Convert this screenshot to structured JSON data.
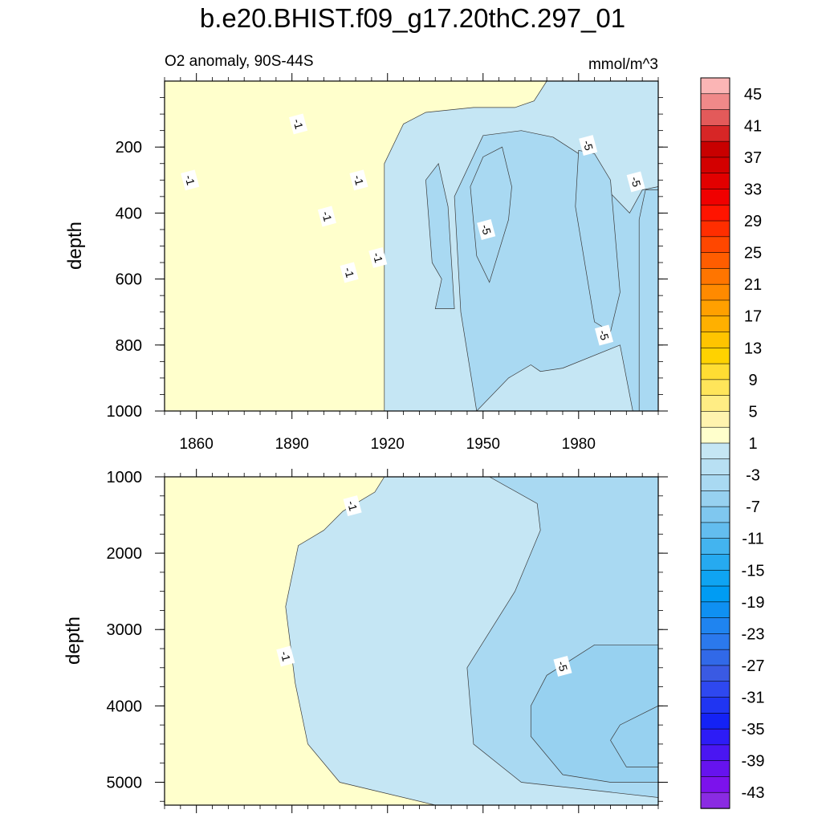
{
  "chart_data": [
    {
      "type": "contour",
      "panel": "upper",
      "title": "b.e20.BHIST.f09_g17.20thC.297_01",
      "left_subtitle": "O2 anomaly, 90S-44S",
      "right_subtitle": "mmol/m^3",
      "xlabel": "",
      "ylabel": "depth",
      "xlim": [
        1850,
        2005
      ],
      "ylim": [
        1000,
        0
      ],
      "xticks": [
        1860,
        1890,
        1920,
        1950,
        1980
      ],
      "xtick_labels": [
        "1860",
        "1890",
        "1920",
        "1950",
        "1980"
      ],
      "yticks": [
        200,
        400,
        600,
        800,
        1000
      ],
      "ytick_labels": [
        "200",
        "400",
        "600",
        "800",
        "1000"
      ],
      "contour_labels": [
        {
          "text": "-1",
          "x": 1858,
          "y": 300
        },
        {
          "text": "-1",
          "x": 1892,
          "y": 130
        },
        {
          "text": "-1",
          "x": 1901,
          "y": 410
        },
        {
          "text": "-1",
          "x": 1911,
          "y": 300
        },
        {
          "text": "-1",
          "x": 1908,
          "y": 580
        },
        {
          "text": "-1",
          "x": 1917,
          "y": 535
        },
        {
          "text": "-5",
          "x": 1951,
          "y": 450
        },
        {
          "text": "-5",
          "x": 1983,
          "y": 195
        },
        {
          "text": "-5",
          "x": 1998,
          "y": 305
        },
        {
          "text": "-5",
          "x": 1988,
          "y": 770
        }
      ],
      "regions": [
        {
          "level": "-3 to 1",
          "shape": [
            [
              1919,
              1000
            ],
            [
              1919,
              720
            ],
            [
              1919,
              250
            ],
            [
              1925,
              130
            ],
            [
              1932,
              95
            ],
            [
              1947,
              80
            ],
            [
              1960,
              80
            ],
            [
              1966,
              60
            ],
            [
              1970,
              0
            ],
            [
              2005,
              0
            ],
            [
              2005,
              1000
            ]
          ]
        },
        {
          "level": "-7 to -3",
          "shape": [
            [
              1972,
              170
            ],
            [
              1980,
              220
            ],
            [
              1985,
              260
            ],
            [
              1990,
              340
            ],
            [
              1996,
              400
            ],
            [
              2000,
              330
            ],
            [
              2005,
              320
            ],
            [
              2005,
              1000
            ],
            [
              1997,
              1000
            ],
            [
              1993,
              800
            ],
            [
              1975,
              870
            ],
            [
              1968,
              880
            ],
            [
              1965,
              860
            ],
            [
              1958,
              900
            ],
            [
              1948,
              1000
            ],
            [
              1943,
              700
            ],
            [
              1941,
              350
            ],
            [
              1950,
              165
            ],
            [
              1962,
              150
            ]
          ]
        },
        {
          "level": "-7 to -3",
          "shape": [
            [
              1935,
              690
            ],
            [
              1937,
              600
            ],
            [
              1934,
              550
            ],
            [
              1932,
              300
            ],
            [
              1936,
              250
            ],
            [
              1939,
              380
            ],
            [
              1941,
              690
            ]
          ]
        },
        {
          "level": "-7 to -3",
          "shape": [
            [
              1958,
              420
            ],
            [
              1952,
              610
            ],
            [
              1948,
              530
            ],
            [
              1946,
              320
            ],
            [
              1950,
              230
            ],
            [
              1956,
              200
            ],
            [
              1959,
              320
            ]
          ]
        },
        {
          "level": "-7 to -3",
          "shape": [
            [
              1985,
              730
            ],
            [
              1990,
              760
            ],
            [
              1993,
              640
            ],
            [
              1990,
              300
            ],
            [
              1985,
              220
            ],
            [
              1980,
              210
            ],
            [
              1979,
              380
            ]
          ]
        },
        {
          "level": "-7 to -3",
          "shape": [
            [
              1999,
              1000
            ],
            [
              1999,
              420
            ],
            [
              2001,
              330
            ],
            [
              2005,
              330
            ],
            [
              2005,
              1000
            ]
          ]
        }
      ]
    },
    {
      "type": "contour",
      "panel": "lower",
      "xlabel": "",
      "ylabel": "depth",
      "xlim": [
        1850,
        2005
      ],
      "ylim": [
        5300,
        1000
      ],
      "xticks": [
        1860,
        1890,
        1920,
        1950,
        1980
      ],
      "yticks": [
        1000,
        2000,
        3000,
        4000,
        5000
      ],
      "ytick_labels": [
        "1000",
        "2000",
        "3000",
        "4000",
        "5000"
      ],
      "contour_labels": [
        {
          "text": "-1",
          "x": 1909,
          "y": 1380
        },
        {
          "text": "-1",
          "x": 1888,
          "y": 3350
        },
        {
          "text": "-5",
          "x": 1975,
          "y": 3480
        }
      ],
      "regions": [
        {
          "level": "-3 to 1",
          "shape": [
            [
              1919,
              1000
            ],
            [
              1916,
              1200
            ],
            [
              1906,
              1450
            ],
            [
              1900,
              1700
            ],
            [
              1892,
              1900
            ],
            [
              1888,
              2700
            ],
            [
              1891,
              3700
            ],
            [
              1895,
              4500
            ],
            [
              1905,
              5000
            ],
            [
              1935,
              5300
            ],
            [
              2005,
              5300
            ],
            [
              2005,
              1000
            ]
          ]
        },
        {
          "level": "-7 to -3",
          "shape": [
            [
              1952,
              1000
            ],
            [
              1967,
              1350
            ],
            [
              1968,
              1700
            ],
            [
              1960,
              2500
            ],
            [
              1945,
              3500
            ],
            [
              1947,
              4500
            ],
            [
              1962,
              5000
            ],
            [
              2005,
              5200
            ],
            [
              2005,
              1000
            ]
          ]
        },
        {
          "level": "-11 to -7",
          "shape": [
            [
              1965,
              4000
            ],
            [
              1965,
              4400
            ],
            [
              1975,
              4900
            ],
            [
              1990,
              5000
            ],
            [
              2005,
              5000
            ],
            [
              2005,
              3200
            ],
            [
              1985,
              3200
            ],
            [
              1970,
              3600
            ]
          ]
        },
        {
          "level": "-11 to -7",
          "shape": [
            [
              1990,
              4450
            ],
            [
              1995,
              4800
            ],
            [
              2005,
              4800
            ],
            [
              2005,
              4000
            ],
            [
              1993,
              4250
            ]
          ]
        }
      ]
    },
    {
      "type": "colorbar",
      "levels": [
        45,
        43,
        41,
        39,
        37,
        35,
        33,
        31,
        29,
        27,
        25,
        23,
        21,
        19,
        17,
        15,
        13,
        11,
        9,
        7,
        5,
        3,
        1,
        -1,
        -3,
        -5,
        -7,
        -9,
        -11,
        -13,
        -15,
        -17,
        -19,
        -21,
        -23,
        -25,
        -27,
        -29,
        -31,
        -33,
        -35,
        -37,
        -39,
        -41,
        -43,
        -45
      ],
      "tick_labels": [
        "45",
        "41",
        "37",
        "33",
        "29",
        "25",
        "21",
        "17",
        "13",
        "9",
        "5",
        "1",
        "-3",
        "-7",
        "-11",
        "-15",
        "-19",
        "-23",
        "-27",
        "-31",
        "-35",
        "-39",
        "-43"
      ],
      "colors": [
        "#fbb5b5",
        "#f08989",
        "#e35a5a",
        "#d72626",
        "#c80000",
        "#d30000",
        "#e20000",
        "#f00000",
        "#ff1400",
        "#ff2e00",
        "#ff4700",
        "#ff5d00",
        "#ff7500",
        "#ff8a00",
        "#ffa000",
        "#ffb000",
        "#ffc400",
        "#ffd200",
        "#ffdd33",
        "#ffe55a",
        "#ffed84",
        "#fff3ae",
        "#ffffcc",
        "#c5e6f4",
        "#b8e0f3",
        "#a9d9f2",
        "#97d1f0",
        "#7fc7ef",
        "#63bdef",
        "#43b4ef",
        "#26aaf0",
        "#0fa4f2",
        "#009cf3",
        "#0f90f2",
        "#1f84f0",
        "#2b79ed",
        "#3169e8",
        "#3a5ae3",
        "#2e48f0",
        "#2035f2",
        "#1422f5",
        "#2d1cf6",
        "#4a16f2",
        "#6613ee",
        "#7c12ec",
        "#8a2be2"
      ]
    }
  ]
}
